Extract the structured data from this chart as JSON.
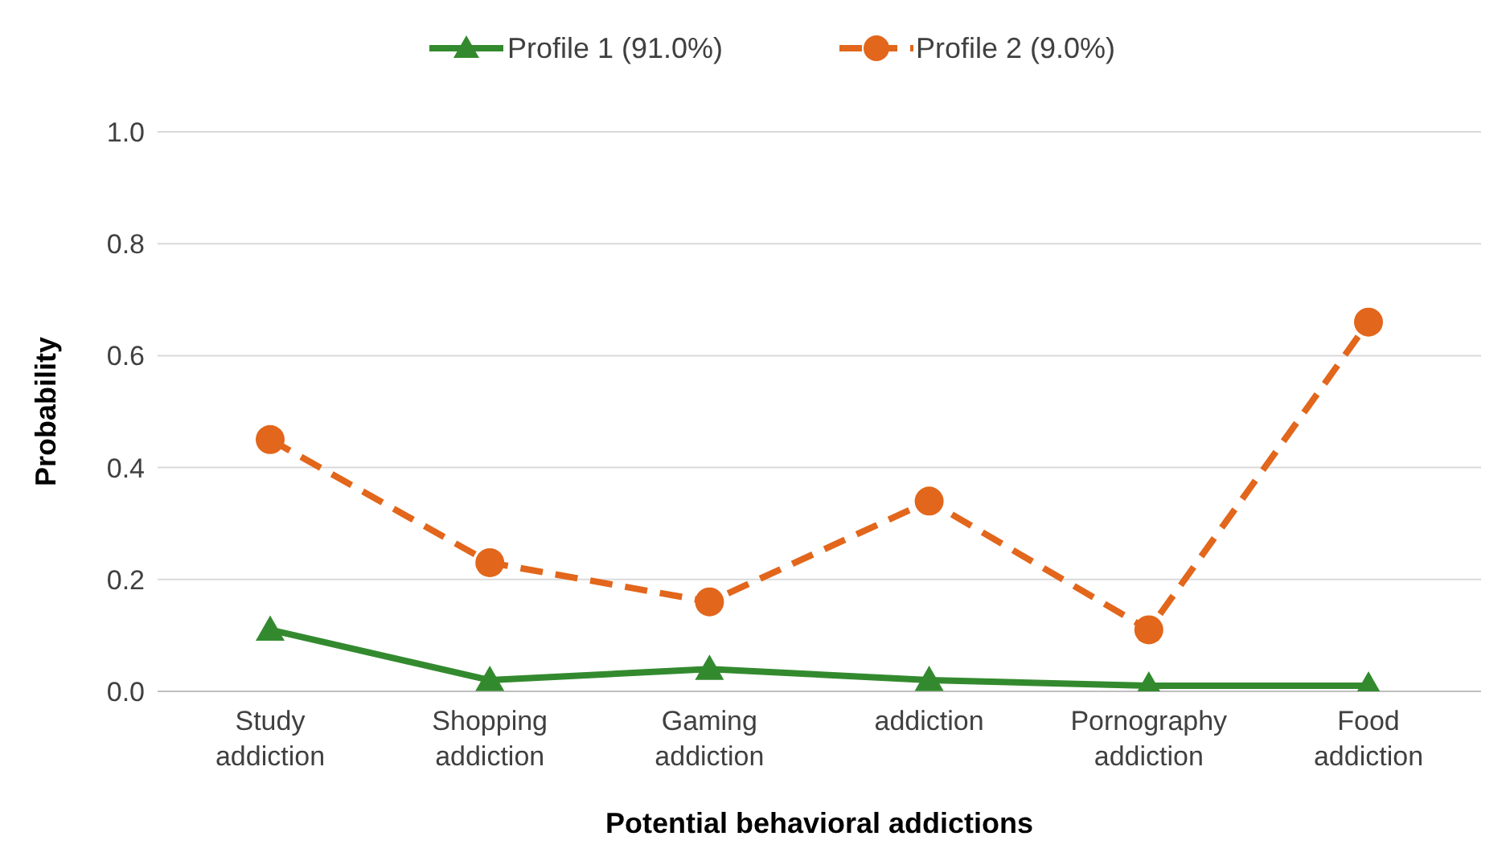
{
  "chart_data": {
    "type": "line",
    "xlabel": "Potential behavioral addictions",
    "ylabel": "Probability",
    "categories": [
      "Study addiction",
      "Shopping addiction",
      "Gaming addiction",
      "addiction",
      "Pornography addiction",
      "Food addiction"
    ],
    "series": [
      {
        "name": "Profile 1 (91.0%)",
        "color": "#338a2e",
        "values": [
          0.11,
          0.02,
          0.04,
          0.02,
          0.01,
          0.01
        ],
        "marker": "triangle",
        "line_style": "solid"
      },
      {
        "name": "Profile 2 (9.0%)",
        "color": "#e2661b",
        "values": [
          0.45,
          0.23,
          0.16,
          0.34,
          0.11,
          0.66
        ],
        "marker": "circle",
        "line_style": "dashed"
      }
    ],
    "ylim": [
      0,
      1
    ],
    "yticks": [
      {
        "value": 0,
        "label": "0.0"
      },
      {
        "value": 0.2,
        "label": "0.2"
      },
      {
        "value": 0.4,
        "label": "0.4"
      },
      {
        "value": 0.6,
        "label": "0.6"
      },
      {
        "value": 0.8,
        "label": "0.8"
      },
      {
        "value": 1,
        "label": "1.0"
      }
    ],
    "grid": "y",
    "legend": "top"
  }
}
